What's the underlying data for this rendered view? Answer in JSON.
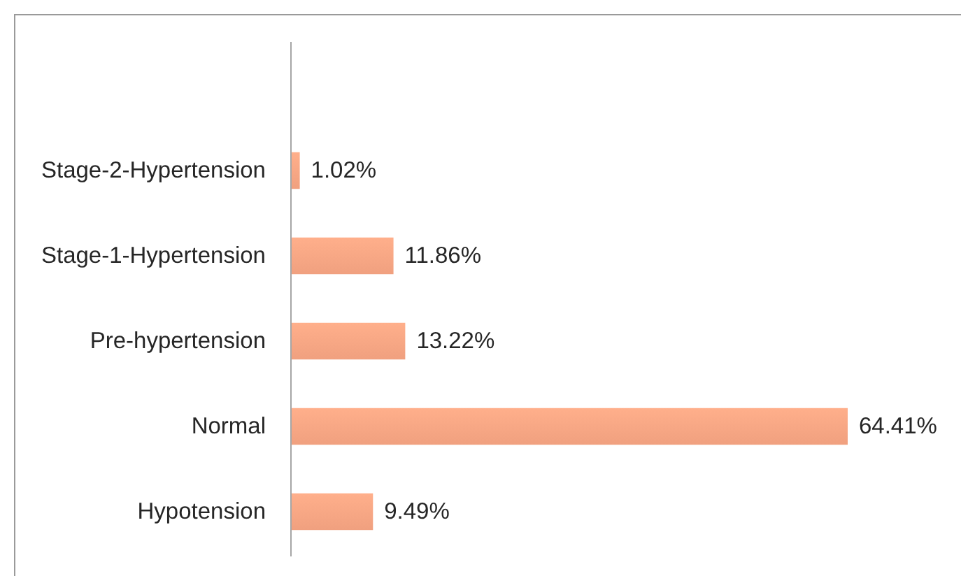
{
  "chart_data": {
    "type": "bar",
    "orientation": "horizontal",
    "categories": [
      "Stage-2-Hypertension",
      "Stage-1-Hypertension",
      "Pre-hypertension",
      "Normal",
      "Hypotension"
    ],
    "values": [
      1.02,
      11.86,
      13.22,
      64.41,
      9.49
    ],
    "color": "#f0a07f",
    "value_labels": [
      "1.02%",
      "11.86%",
      "13.22%",
      "64.41%",
      "9.49%"
    ],
    "tick_labels": "y"
  }
}
